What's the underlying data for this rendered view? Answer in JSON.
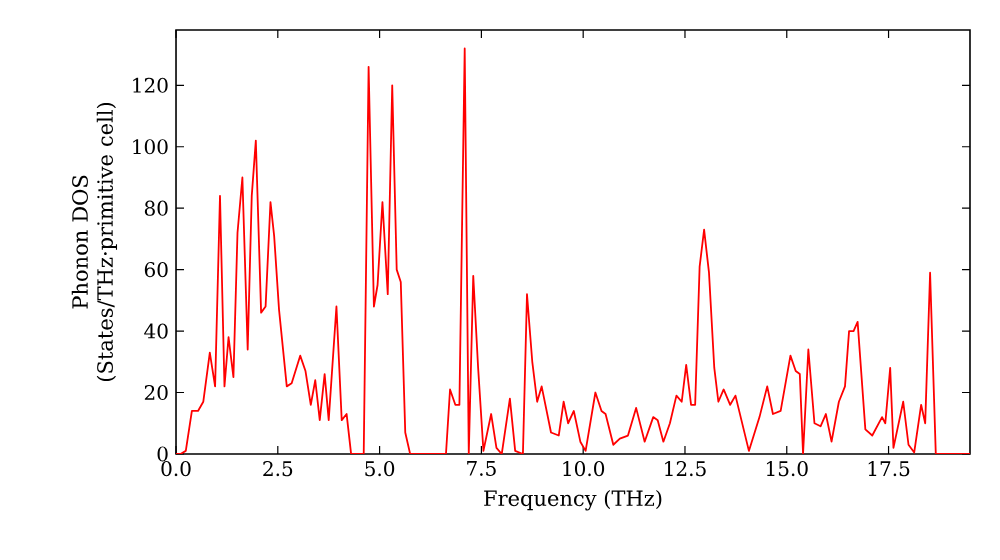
{
  "chart_data": {
    "type": "line",
    "xlabel": "Frequency (THz)",
    "ylabel": "Phonon DOS (States/THz·primitive cell)",
    "xlim": [
      0,
      19.5
    ],
    "ylim": [
      0,
      138
    ],
    "xticks": [
      {
        "value": 0,
        "label": "0.0"
      },
      2.5,
      {
        "value": 5,
        "label": "5.0"
      },
      7.5,
      {
        "value": 10,
        "label": "10.0"
      },
      12.5,
      {
        "value": 15,
        "label": "15.0"
      },
      17.5
    ],
    "yticks": [
      0,
      20,
      40,
      60,
      80,
      100,
      120
    ],
    "marker": "none",
    "line_style": "solid",
    "series": [
      {
        "color": "#ff0000",
        "x": [
          0,
          0.11,
          0.24,
          0.39,
          0.54,
          0.67,
          0.83,
          0.96,
          1.08,
          1.19,
          1.29,
          1.41,
          1.51,
          1.63,
          1.76,
          1.86,
          1.96,
          2.09,
          2.2,
          2.32,
          2.41,
          2.53,
          2.72,
          2.84,
          3.05,
          3.18,
          3.31,
          3.42,
          3.53,
          3.65,
          3.75,
          3.94,
          4.07,
          4.19,
          4.3,
          4.61,
          4.73,
          4.86,
          4.95,
          5.07,
          5.2,
          5.31,
          5.42,
          5.52,
          5.63,
          5.75,
          6.63,
          6.73,
          6.86,
          6.96,
          7.09,
          7.19,
          7.3,
          7.42,
          7.55,
          7.74,
          7.87,
          8.0,
          8.2,
          8.33,
          8.52,
          8.62,
          8.75,
          8.87,
          8.98,
          9.21,
          9.4,
          9.52,
          9.63,
          9.77,
          9.93,
          10.06,
          10.3,
          10.45,
          10.55,
          10.74,
          10.9,
          11.1,
          11.3,
          11.51,
          11.72,
          11.83,
          11.97,
          12.13,
          12.29,
          12.42,
          12.53,
          12.65,
          12.75,
          12.86,
          12.97,
          13.09,
          13.22,
          13.32,
          13.45,
          13.61,
          13.74,
          14.07,
          14.33,
          14.52,
          14.66,
          14.85,
          15.09,
          15.22,
          15.32,
          15.4,
          15.53,
          15.68,
          15.83,
          15.96,
          16.1,
          16.28,
          16.43,
          16.53,
          16.64,
          16.74,
          16.93,
          17.1,
          17.34,
          17.42,
          17.54,
          17.62,
          17.86,
          17.99,
          18.13,
          18.3,
          18.4,
          18.52,
          18.66,
          19.5
        ],
        "values": [
          0,
          0,
          1,
          14,
          14,
          17,
          33,
          22,
          84,
          22,
          38,
          25,
          72,
          90,
          34,
          84,
          102,
          46,
          48,
          82,
          71,
          47,
          22,
          23,
          32,
          27,
          16,
          24,
          11,
          26,
          11,
          48,
          11,
          13,
          0,
          0,
          126,
          48,
          55,
          82,
          52,
          120,
          60,
          56,
          7,
          0,
          0,
          21,
          16,
          16,
          132,
          0,
          58,
          28,
          1,
          13,
          2,
          0,
          18,
          1,
          0,
          52,
          30,
          17,
          22,
          7,
          6,
          17,
          10,
          14,
          4,
          1,
          20,
          14,
          13,
          3,
          5,
          6,
          15,
          4,
          12,
          11,
          4,
          10,
          19,
          17,
          29,
          16,
          16,
          61,
          73,
          59,
          28,
          17,
          21,
          16,
          19,
          1,
          12,
          22,
          13,
          14,
          32,
          27,
          26,
          0,
          34,
          10,
          9,
          13,
          4,
          17,
          22,
          40,
          40,
          43,
          8,
          6,
          12,
          10,
          28,
          2,
          17,
          3,
          0.5,
          16,
          10,
          59,
          0,
          0
        ]
      }
    ]
  }
}
